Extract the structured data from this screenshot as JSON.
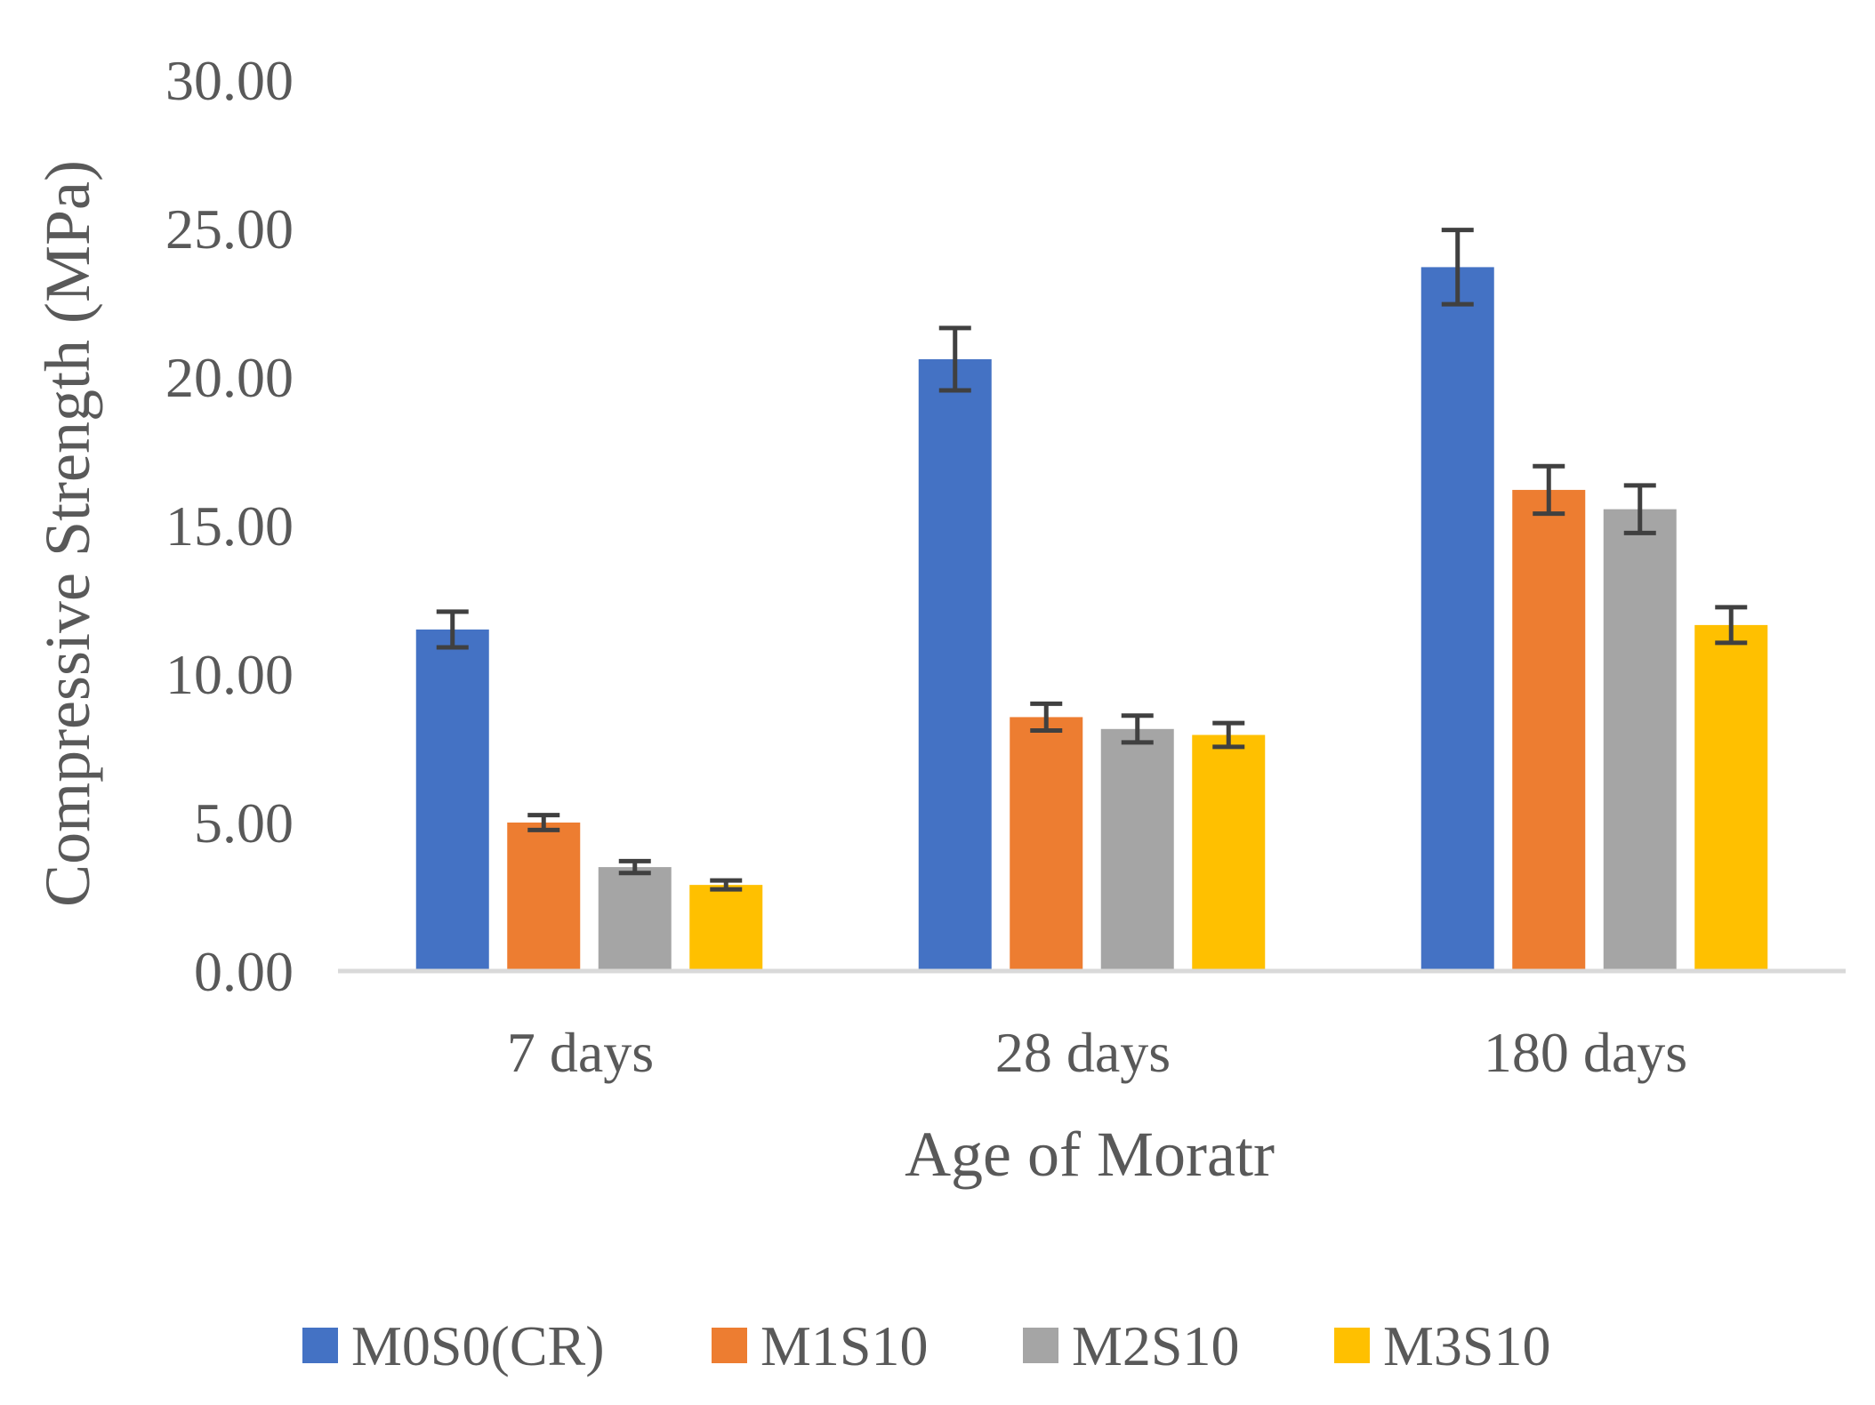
{
  "chart_data": {
    "type": "bar",
    "title": "",
    "xlabel": "Age of Moratr",
    "ylabel": "Compressive Strength (MPa)",
    "ylim": [
      0,
      30
    ],
    "yticks": [
      "0.00",
      "5.00",
      "10.00",
      "15.00",
      "20.00",
      "25.00",
      "30.00"
    ],
    "ytick_values": [
      0,
      5,
      10,
      15,
      20,
      25,
      30
    ],
    "categories": [
      "7 days",
      "28 days",
      "180 days"
    ],
    "grid": false,
    "legend_position": "bottom",
    "series": [
      {
        "name": "M0S0(CR)",
        "color": "#4472C4",
        "values": [
          11.5,
          20.6,
          23.7
        ],
        "errors": [
          0.6,
          1.05,
          1.25
        ]
      },
      {
        "name": "M1S10",
        "color": "#ED7D31",
        "values": [
          5.0,
          8.55,
          16.2
        ],
        "errors": [
          0.25,
          0.45,
          0.8
        ]
      },
      {
        "name": "M2S10",
        "color": "#A5A5A5",
        "values": [
          3.5,
          8.15,
          15.55
        ],
        "errors": [
          0.2,
          0.45,
          0.8
        ]
      },
      {
        "name": "M3S10",
        "color": "#FFC000",
        "values": [
          2.9,
          7.95,
          11.65
        ],
        "errors": [
          0.15,
          0.4,
          0.6
        ]
      }
    ],
    "axis_color": "#D9D9D9",
    "errorbar_color": "#404040"
  }
}
